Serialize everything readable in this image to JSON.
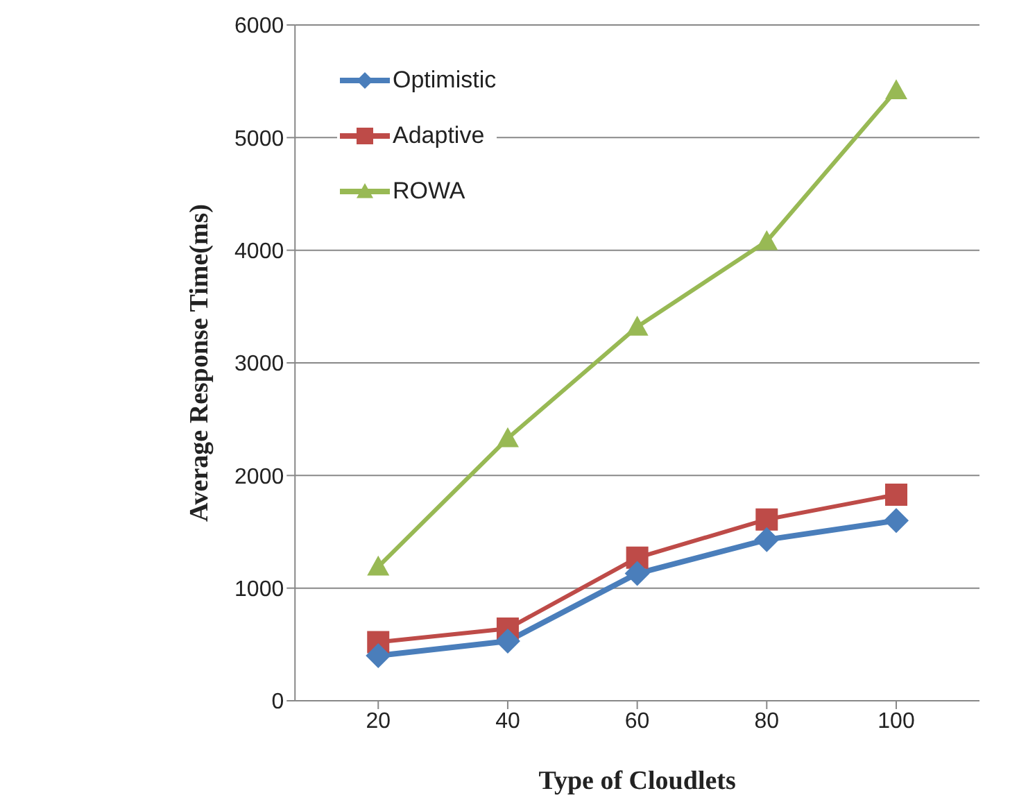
{
  "chart_data": {
    "type": "line",
    "xlabel": "Type of Cloudlets",
    "ylabel": "Average Response Time(ms)",
    "categories": [
      "20",
      "40",
      "60",
      "80",
      "100"
    ],
    "ylim": [
      0,
      6000
    ],
    "yticks": [
      0,
      1000,
      2000,
      3000,
      4000,
      5000,
      6000
    ],
    "grid": "y",
    "legend": "top left",
    "series": [
      {
        "name": "Optimistic",
        "color": "#4a7ebb",
        "marker": "diamond",
        "values": [
          400,
          530,
          1130,
          1430,
          1600
        ]
      },
      {
        "name": "Adaptive",
        "color": "#be4b48",
        "marker": "square",
        "values": [
          520,
          640,
          1270,
          1610,
          1830
        ]
      },
      {
        "name": "ROWA",
        "color": "#98b954",
        "marker": "triangle",
        "values": [
          1190,
          2330,
          3320,
          4080,
          5420
        ]
      }
    ]
  }
}
